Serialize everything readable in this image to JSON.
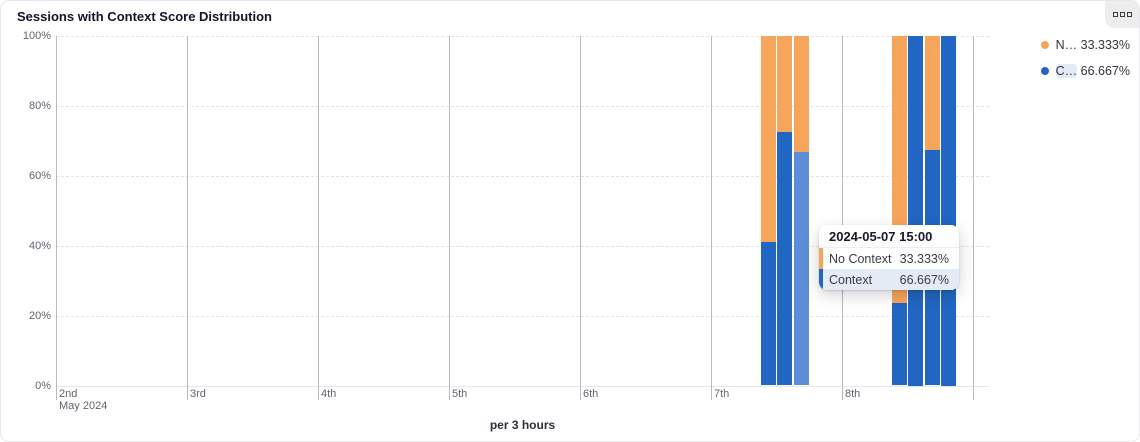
{
  "card": {
    "title": "Sessions with Context Score Distribution"
  },
  "chart_data": {
    "type": "bar",
    "stacked": true,
    "title": "Sessions with Context Score Distribution",
    "xlabel": "per 3 hours",
    "x_axis": {
      "month_label": "May 2024",
      "day_ticks": [
        "2nd",
        "3rd",
        "4th",
        "5th",
        "6th",
        "7th",
        "8th"
      ],
      "has_extra_unlabeled_tick": true
    },
    "y_axis": {
      "min": 0,
      "max": 100,
      "ticks": [
        "0%",
        "20%",
        "40%",
        "60%",
        "80%",
        "100%"
      ]
    },
    "grid": {
      "vertical": "solid",
      "horizontal": "dashed"
    },
    "legend_position": "top-right",
    "series_meta": [
      {
        "name": "No Context",
        "color": "#f8a55c"
      },
      {
        "name": "Context",
        "color": "#2166c2",
        "highlight_color": "#5b8dd8"
      }
    ],
    "bars": [
      {
        "time": "2024-05-07 09:00",
        "context_pct": 41,
        "no_context_pct": 59,
        "highlighted": false
      },
      {
        "time": "2024-05-07 12:00",
        "context_pct": 72.5,
        "no_context_pct": 27.5,
        "highlighted": false
      },
      {
        "time": "2024-05-07 15:00",
        "context_pct": 66.667,
        "no_context_pct": 33.333,
        "highlighted": true
      },
      {
        "time": "2024-05-08 09:00",
        "context_pct": 23.5,
        "no_context_pct": 76.5,
        "highlighted": false
      },
      {
        "time": "2024-05-08 12:00",
        "context_pct": 100,
        "no_context_pct": 0,
        "highlighted": false
      },
      {
        "time": "2024-05-08 15:00",
        "context_pct": 67.5,
        "no_context_pct": 32.5,
        "highlighted": false
      },
      {
        "time": "2024-05-08 18:00",
        "context_pct": 100,
        "no_context_pct": 0,
        "highlighted": false
      }
    ]
  },
  "legend": {
    "items": [
      {
        "name_short": "N…",
        "value": "33.333%",
        "color": "#f8a55c",
        "highlighted": false
      },
      {
        "name_short": "C…",
        "value": "66.667%",
        "color": "#2166c2",
        "highlighted": true
      }
    ]
  },
  "tooltip": {
    "header": "2024-05-07 15:00",
    "rows": [
      {
        "label": "No Context",
        "value": "33.333%",
        "color": "#f8a55c",
        "highlighted": false
      },
      {
        "label": "Context",
        "value": "66.667%",
        "color": "#2166c2",
        "highlighted": true
      }
    ]
  }
}
